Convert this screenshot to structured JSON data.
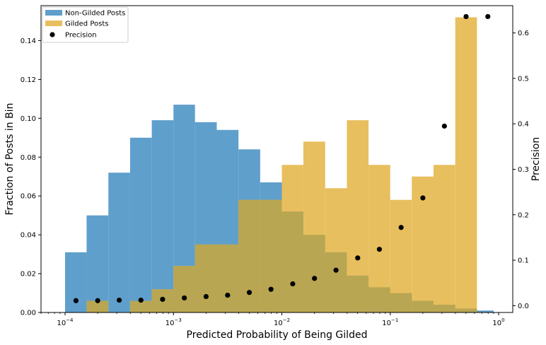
{
  "chart_data": {
    "type": "bar",
    "xlabel": "Predicted Probability of Being Gilded",
    "ylabel_left": "Fraction of Posts in Bin",
    "ylabel_right": "Precision",
    "x_scale": "log",
    "xlim": [
      6e-05,
      1.35
    ],
    "ylim_left": [
      0,
      0.158
    ],
    "ylim_right": [
      -0.015,
      0.66
    ],
    "x_ticks": [
      {
        "value": 0.0001,
        "base": "10",
        "exp": "−4"
      },
      {
        "value": 0.001,
        "base": "10",
        "exp": "−3"
      },
      {
        "value": 0.01,
        "base": "10",
        "exp": "−2"
      },
      {
        "value": 0.1,
        "base": "10",
        "exp": "−1"
      },
      {
        "value": 1,
        "base": "10",
        "exp": "0"
      }
    ],
    "y_ticks_left": [
      "0.00",
      "0.02",
      "0.04",
      "0.06",
      "0.08",
      "0.10",
      "0.12",
      "0.14"
    ],
    "y_ticks_right": [
      "0.0",
      "0.1",
      "0.2",
      "0.3",
      "0.4",
      "0.5",
      "0.6"
    ],
    "legend_position": "upper-left",
    "bin_edges": [
      0.0001,
      0.000158,
      0.000251,
      0.000398,
      0.000631,
      0.001,
      0.00158,
      0.00251,
      0.00398,
      0.00631,
      0.01,
      0.0158,
      0.0251,
      0.0398,
      0.0631,
      0.1,
      0.158,
      0.251,
      0.398,
      0.631,
      0.9
    ],
    "series": [
      {
        "name": "Non-Gilded Posts",
        "kind": "hist",
        "color": "#5f9fcc",
        "values": [
          0.031,
          0.05,
          0.072,
          0.09,
          0.099,
          0.107,
          0.098,
          0.094,
          0.084,
          0.067,
          0.052,
          0.04,
          0.031,
          0.019,
          0.013,
          0.01,
          0.006,
          0.004,
          0.002,
          0.001
        ]
      },
      {
        "name": "Gilded Posts",
        "kind": "hist",
        "color": "#e8bf5f",
        "values": [
          0.0,
          0.006,
          0.0,
          0.006,
          0.012,
          0.024,
          0.035,
          0.035,
          0.058,
          0.058,
          0.076,
          0.088,
          0.064,
          0.099,
          0.076,
          0.058,
          0.07,
          0.076,
          0.152,
          0.0
        ]
      },
      {
        "name": "Precision",
        "kind": "scatter",
        "color": "#000000",
        "x": [
          0.000126,
          0.0002,
          0.000316,
          0.000501,
          0.000794,
          0.00126,
          0.002,
          0.00316,
          0.00501,
          0.00794,
          0.0126,
          0.02,
          0.0316,
          0.0501,
          0.0794,
          0.126,
          0.2,
          0.316,
          0.501,
          0.795
        ],
        "y": [
          0.011,
          0.011,
          0.012,
          0.012,
          0.014,
          0.017,
          0.02,
          0.023,
          0.029,
          0.036,
          0.048,
          0.06,
          0.078,
          0.105,
          0.124,
          0.172,
          0.237,
          0.395,
          0.636,
          0.636
        ]
      }
    ]
  }
}
